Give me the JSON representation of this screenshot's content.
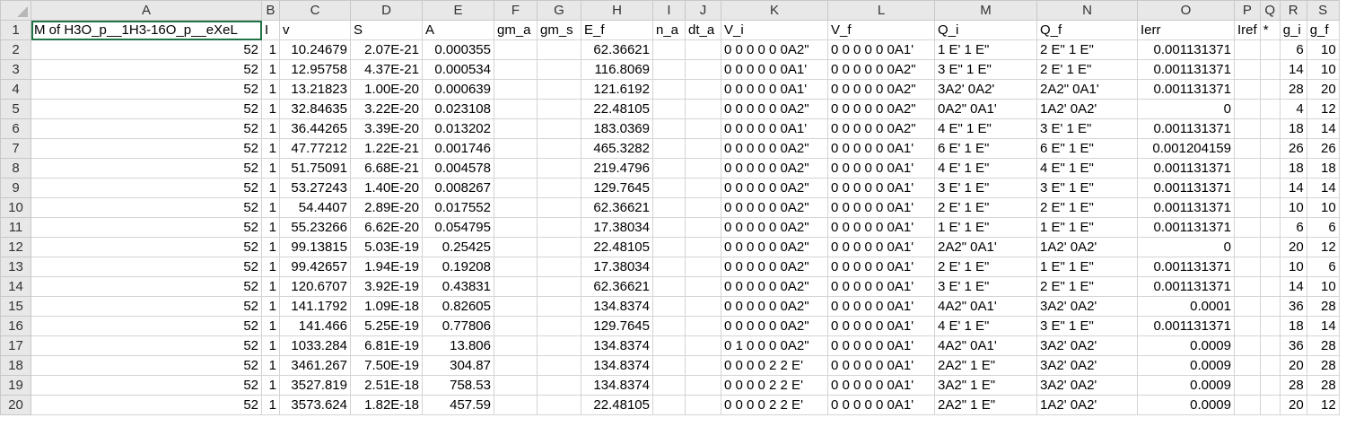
{
  "columns": [
    "A",
    "B",
    "C",
    "D",
    "E",
    "F",
    "G",
    "H",
    "I",
    "J",
    "K",
    "L",
    "M",
    "N",
    "O",
    "P",
    "Q",
    "R",
    "S"
  ],
  "header_row": [
    "M of H3O_p__1H3-16O_p__eXeL",
    "I",
    "v",
    "S",
    "A",
    "gm_a",
    "gm_s",
    "E_f",
    "n_a",
    "dt_a",
    "V_i",
    "V_f",
    "Q_i",
    "Q_f",
    "Ierr",
    "Iref",
    "*",
    "g_i",
    "g_f"
  ],
  "rows": [
    [
      "52",
      "1",
      "10.24679",
      "2.07E-21",
      "0.000355",
      "",
      "",
      "62.36621",
      "",
      "",
      "0 0 0 0 0 0A2\"",
      "0 0 0 0 0 0A1'",
      "1 E'  1 E\"",
      "2 E\"  1 E\"",
      "0.001131371",
      "",
      "",
      "6",
      "10"
    ],
    [
      "52",
      "1",
      "12.95758",
      "4.37E-21",
      "0.000534",
      "",
      "",
      "116.8069",
      "",
      "",
      "0 0 0 0 0 0A1'",
      "0 0 0 0 0 0A2\"",
      "3 E\"  1 E\"",
      "2 E'  1 E\"",
      "0.001131371",
      "",
      "",
      "14",
      "10"
    ],
    [
      "52",
      "1",
      "13.21823",
      "1.00E-20",
      "0.000639",
      "",
      "",
      "121.6192",
      "",
      "",
      "0 0 0 0 0 0A1'",
      "0 0 0 0 0 0A2\"",
      "3A2'  0A2'",
      "2A2\"  0A1'",
      "0.001131371",
      "",
      "",
      "28",
      "20"
    ],
    [
      "52",
      "1",
      "32.84635",
      "3.22E-20",
      "0.023108",
      "",
      "",
      "22.48105",
      "",
      "",
      "0 0 0 0 0 0A2\"",
      "0 0 0 0 0 0A2\"",
      "0A2\"  0A1'",
      "1A2'  0A2'",
      "0",
      "",
      "",
      "4",
      "12"
    ],
    [
      "52",
      "1",
      "36.44265",
      "3.39E-20",
      "0.013202",
      "",
      "",
      "183.0369",
      "",
      "",
      "0 0 0 0 0 0A1'",
      "0 0 0 0 0 0A2\"",
      "4 E\"  1 E\"",
      "3 E'  1 E\"",
      "0.001131371",
      "",
      "",
      "18",
      "14"
    ],
    [
      "52",
      "1",
      "47.77212",
      "1.22E-21",
      "0.001746",
      "",
      "",
      "465.3282",
      "",
      "",
      "0 0 0 0 0 0A2\"",
      "0 0 0 0 0 0A1'",
      "6 E'  1 E\"",
      "6 E\"  1 E\"",
      "0.001204159",
      "",
      "",
      "26",
      "26"
    ],
    [
      "52",
      "1",
      "51.75091",
      "6.68E-21",
      "0.004578",
      "",
      "",
      "219.4796",
      "",
      "",
      "0 0 0 0 0 0A2\"",
      "0 0 0 0 0 0A1'",
      "4 E'  1 E\"",
      "4 E\"  1 E\"",
      "0.001131371",
      "",
      "",
      "18",
      "18"
    ],
    [
      "52",
      "1",
      "53.27243",
      "1.40E-20",
      "0.008267",
      "",
      "",
      "129.7645",
      "",
      "",
      "0 0 0 0 0 0A2\"",
      "0 0 0 0 0 0A1'",
      "3 E'  1 E\"",
      "3 E\"  1 E\"",
      "0.001131371",
      "",
      "",
      "14",
      "14"
    ],
    [
      "52",
      "1",
      "54.4407",
      "2.89E-20",
      "0.017552",
      "",
      "",
      "62.36621",
      "",
      "",
      "0 0 0 0 0 0A2\"",
      "0 0 0 0 0 0A1'",
      "2 E'  1 E\"",
      "2 E\"  1 E\"",
      "0.001131371",
      "",
      "",
      "10",
      "10"
    ],
    [
      "52",
      "1",
      "55.23266",
      "6.62E-20",
      "0.054795",
      "",
      "",
      "17.38034",
      "",
      "",
      "0 0 0 0 0 0A2\"",
      "0 0 0 0 0 0A1'",
      "1 E'  1 E\"",
      "1 E\"  1 E\"",
      "0.001131371",
      "",
      "",
      "6",
      "6"
    ],
    [
      "52",
      "1",
      "99.13815",
      "5.03E-19",
      "0.25425",
      "",
      "",
      "22.48105",
      "",
      "",
      "0 0 0 0 0 0A2\"",
      "0 0 0 0 0 0A1'",
      "2A2\"  0A1'",
      "1A2'  0A2'",
      "0",
      "",
      "",
      "20",
      "12"
    ],
    [
      "52",
      "1",
      "99.42657",
      "1.94E-19",
      "0.19208",
      "",
      "",
      "17.38034",
      "",
      "",
      "0 0 0 0 0 0A2\"",
      "0 0 0 0 0 0A1'",
      "2 E'  1 E\"",
      "1 E\"  1 E\"",
      "0.001131371",
      "",
      "",
      "10",
      "6"
    ],
    [
      "52",
      "1",
      "120.6707",
      "3.92E-19",
      "0.43831",
      "",
      "",
      "62.36621",
      "",
      "",
      "0 0 0 0 0 0A2\"",
      "0 0 0 0 0 0A1'",
      "3 E'  1 E\"",
      "2 E\"  1 E\"",
      "0.001131371",
      "",
      "",
      "14",
      "10"
    ],
    [
      "52",
      "1",
      "141.1792",
      "1.09E-18",
      "0.82605",
      "",
      "",
      "134.8374",
      "",
      "",
      "0 0 0 0 0 0A2\"",
      "0 0 0 0 0 0A1'",
      "4A2\"  0A1'",
      "3A2'  0A2'",
      "0.0001",
      "",
      "",
      "36",
      "28"
    ],
    [
      "52",
      "1",
      "141.466",
      "5.25E-19",
      "0.77806",
      "",
      "",
      "129.7645",
      "",
      "",
      "0 0 0 0 0 0A2\"",
      "0 0 0 0 0 0A1'",
      "4 E'  1 E\"",
      "3 E\"  1 E\"",
      "0.001131371",
      "",
      "",
      "18",
      "14"
    ],
    [
      "52",
      "1",
      "1033.284",
      "6.81E-19",
      "13.806",
      "",
      "",
      "134.8374",
      "",
      "",
      "0 1 0 0 0 0A2\"",
      "0 0 0 0 0 0A1'",
      "4A2\"  0A1'",
      "3A2'  0A2'",
      "0.0009",
      "",
      "",
      "36",
      "28"
    ],
    [
      "52",
      "1",
      "3461.267",
      "7.50E-19",
      "304.87",
      "",
      "",
      "134.8374",
      "",
      "",
      "0 0 0 0 2 2 E'",
      "0 0 0 0 0 0A1'",
      "2A2\"  1 E\"",
      "3A2'  0A2'",
      "0.0009",
      "",
      "",
      "20",
      "28"
    ],
    [
      "52",
      "1",
      "3527.819",
      "2.51E-18",
      "758.53",
      "",
      "",
      "134.8374",
      "",
      "",
      "0 0 0 0 2 2 E'",
      "0 0 0 0 0 0A1'",
      "3A2\"  1 E\"",
      "3A2'  0A2'",
      "0.0009",
      "",
      "",
      "28",
      "28"
    ],
    [
      "52",
      "1",
      "3573.624",
      "1.82E-18",
      "457.59",
      "",
      "",
      "22.48105",
      "",
      "",
      "0 0 0 0 2 2 E'",
      "0 0 0 0 0 0A1'",
      "2A2\"  1 E\"",
      "1A2'  0A2'",
      "0.0009",
      "",
      "",
      "20",
      "12"
    ]
  ]
}
